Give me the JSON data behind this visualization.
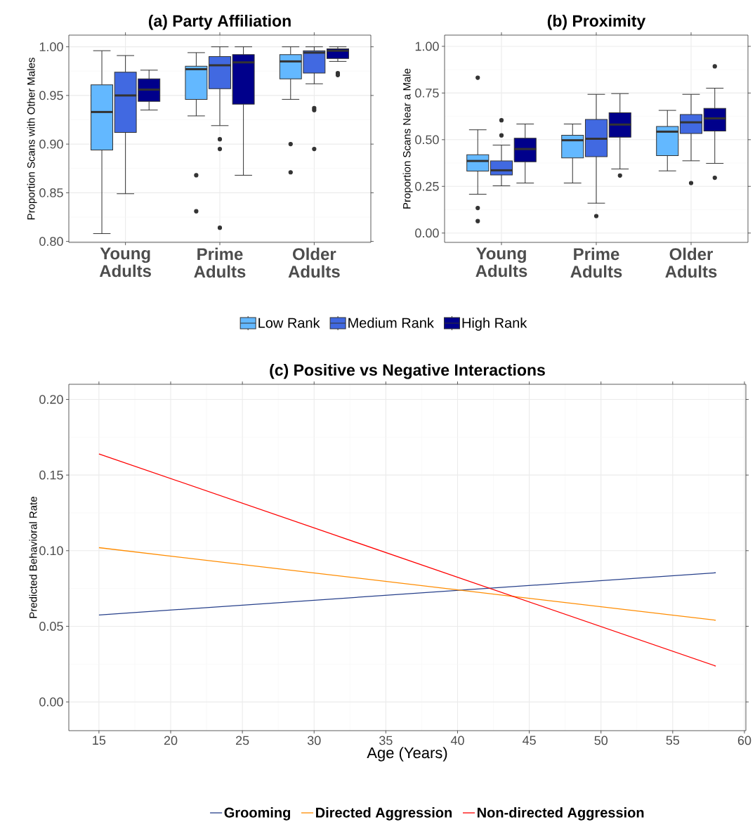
{
  "chart_data": [
    {
      "type": "box",
      "title": "(a) Party Affiliation",
      "ylabel": "Proportion Scans with Other Males",
      "categories": [
        "Young Adults",
        "Prime Adults",
        "Older Adults"
      ],
      "ylim": [
        0.799,
        1.012
      ],
      "yticks": [
        {
          "value": 0.8,
          "label": "0.80"
        },
        {
          "value": 0.85,
          "label": "0.85"
        },
        {
          "value": 0.9,
          "label": "0.90"
        },
        {
          "value": 0.95,
          "label": "0.95"
        },
        {
          "value": 1.0,
          "label": "1.00"
        }
      ],
      "grid": true,
      "legend": "bottom",
      "series": [
        {
          "name": "Low Rank",
          "color": "#63b8ff",
          "boxes": [
            {
              "low": 0.808,
              "q1": 0.894,
              "median": 0.933,
              "q3": 0.961,
              "high": 0.996
            },
            {
              "low": 0.929,
              "q1": 0.946,
              "median": 0.977,
              "q3": 0.98,
              "high": 0.994,
              "outliers": [
                0.868,
                0.831
              ]
            },
            {
              "low": 0.946,
              "q1": 0.967,
              "median": 0.985,
              "q3": 0.992,
              "high": 1.0,
              "outliers": [
                0.9,
                0.871
              ]
            }
          ]
        },
        {
          "name": "Medium Rank",
          "color": "#4169e1",
          "boxes": [
            {
              "low": 0.849,
              "q1": 0.912,
              "median": 0.95,
              "q3": 0.974,
              "high": 0.991
            },
            {
              "low": 0.919,
              "q1": 0.957,
              "median": 0.981,
              "q3": 0.99,
              "high": 1.0,
              "outliers": [
                0.905,
                0.895,
                0.814
              ]
            },
            {
              "low": 0.962,
              "q1": 0.973,
              "median": 0.994,
              "q3": 0.996,
              "high": 1.0,
              "outliers": [
                0.937,
                0.935,
                0.895
              ]
            }
          ]
        },
        {
          "name": "High Rank",
          "color": "#00008b",
          "boxes": [
            {
              "low": 0.935,
              "q1": 0.944,
              "median": 0.956,
              "q3": 0.967,
              "high": 0.976
            },
            {
              "low": 0.868,
              "q1": 0.941,
              "median": 0.984,
              "q3": 0.992,
              "high": 1.0
            },
            {
              "low": 0.985,
              "q1": 0.988,
              "median": 0.996,
              "q3": 0.998,
              "high": 1.0,
              "outliers": [
                0.973,
                0.971
              ]
            }
          ]
        }
      ]
    },
    {
      "type": "box",
      "title": "(b) Proximity",
      "ylabel": "Proportion Scans Near a Male",
      "categories": [
        "Young Adults",
        "Prime Adults",
        "Older Adults"
      ],
      "ylim": [
        -0.05,
        1.06
      ],
      "yticks": [
        {
          "value": 0.0,
          "label": "0.00"
        },
        {
          "value": 0.25,
          "label": "0.25"
        },
        {
          "value": 0.5,
          "label": "0.50"
        },
        {
          "value": 0.75,
          "label": "0.75"
        },
        {
          "value": 1.0,
          "label": "1.00"
        }
      ],
      "grid": true,
      "series": [
        {
          "color": "#63b8ff",
          "boxes": [
            {
              "low": 0.208,
              "q1": 0.332,
              "median": 0.386,
              "q3": 0.419,
              "high": 0.553,
              "outliers": [
                0.832,
                0.134,
                0.064
              ]
            },
            {
              "low": 0.268,
              "q1": 0.402,
              "median": 0.497,
              "q3": 0.524,
              "high": 0.584
            },
            {
              "low": 0.333,
              "q1": 0.415,
              "median": 0.543,
              "q3": 0.571,
              "high": 0.657
            }
          ]
        },
        {
          "color": "#4169e1",
          "boxes": [
            {
              "low": 0.253,
              "q1": 0.311,
              "median": 0.336,
              "q3": 0.386,
              "high": 0.471,
              "outliers": [
                0.604,
                0.523
              ]
            },
            {
              "low": 0.16,
              "q1": 0.409,
              "median": 0.505,
              "q3": 0.608,
              "high": 0.743,
              "outliers": [
                0.091
              ]
            },
            {
              "low": 0.387,
              "q1": 0.533,
              "median": 0.593,
              "q3": 0.635,
              "high": 0.743,
              "outliers": [
                0.268
              ]
            }
          ]
        },
        {
          "color": "#00008b",
          "boxes": [
            {
              "low": 0.268,
              "q1": 0.382,
              "median": 0.45,
              "q3": 0.508,
              "high": 0.584
            },
            {
              "low": 0.343,
              "q1": 0.513,
              "median": 0.581,
              "q3": 0.644,
              "high": 0.747,
              "outliers": [
                0.308
              ]
            },
            {
              "low": 0.373,
              "q1": 0.546,
              "median": 0.614,
              "q3": 0.668,
              "high": 0.776,
              "outliers": [
                0.893,
                0.296
              ]
            }
          ]
        }
      ]
    },
    {
      "type": "line",
      "title": "(c) Positive vs Negative Interactions",
      "xlabel": "Age (Years)",
      "ylabel": "Predicted Behavioral Rate",
      "xlim": [
        12.9,
        60.1
      ],
      "ylim": [
        -0.019,
        0.21
      ],
      "xticks": [
        15,
        20,
        25,
        30,
        35,
        40,
        45,
        50,
        55,
        60
      ],
      "yticks": [
        {
          "value": 0.0,
          "label": "0.00"
        },
        {
          "value": 0.05,
          "label": "0.05"
        },
        {
          "value": 0.1,
          "label": "0.10"
        },
        {
          "value": 0.15,
          "label": "0.15"
        },
        {
          "value": 0.2,
          "label": "0.20"
        }
      ],
      "grid": true,
      "legend": "bottom",
      "x": [
        15,
        58
      ],
      "series": [
        {
          "name": "Grooming",
          "color": "#27408b",
          "values": [
            0.0575,
            0.0854
          ]
        },
        {
          "name": "Directed Aggression",
          "color": "#ff8c00",
          "values": [
            0.102,
            0.054
          ]
        },
        {
          "name": "Non-directed Aggression",
          "color": "#ff0000",
          "values": [
            0.164,
            0.0237
          ]
        }
      ]
    }
  ]
}
